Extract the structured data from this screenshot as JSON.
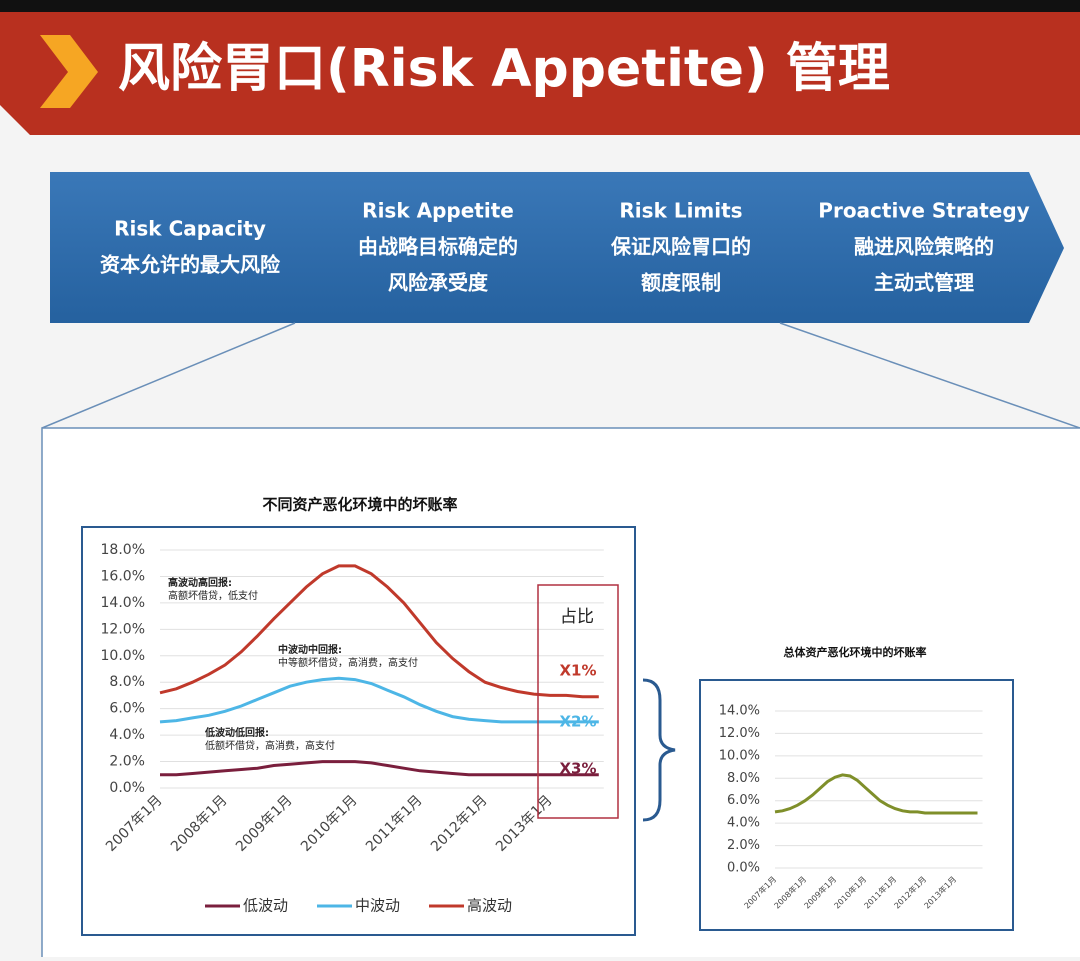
{
  "header": {
    "title": "风险胃口(Risk Appetite) 管理"
  },
  "process": {
    "steps": [
      {
        "title": "Risk Capacity",
        "lines": [
          "资本允许的最大风险"
        ]
      },
      {
        "title": "Risk Appetite",
        "lines": [
          "由战略目标确定的",
          "风险承受度"
        ]
      },
      {
        "title": "Risk Limits",
        "lines": [
          "保证风险胃口的",
          "额度限制"
        ]
      },
      {
        "title": "Proactive Strategy",
        "lines": [
          "融进风险策略的",
          "主动式管理"
        ]
      }
    ]
  },
  "chart_data": [
    {
      "type": "line",
      "title": "不同资产恶化环境中的坏账率",
      "categories": [
        "2007年1月",
        null,
        null,
        null,
        "2008年1月",
        null,
        null,
        null,
        "2009年1月",
        null,
        null,
        null,
        "2010年1月",
        null,
        null,
        null,
        "2011年1月",
        null,
        null,
        null,
        "2012年1月",
        null,
        null,
        null,
        "2013年1月",
        null,
        null,
        null
      ],
      "series": [
        {
          "name": "低波动",
          "color": "#7a1f3d",
          "values": [
            1.0,
            1.0,
            1.1,
            1.2,
            1.3,
            1.4,
            1.5,
            1.7,
            1.8,
            1.9,
            2.0,
            2.0,
            2.0,
            1.9,
            1.7,
            1.5,
            1.3,
            1.2,
            1.1,
            1.0,
            1.0,
            1.0,
            1.0,
            1.0,
            1.0,
            1.0,
            1.0,
            1.0
          ]
        },
        {
          "name": "中波动",
          "color": "#4db6e6",
          "values": [
            5.0,
            5.1,
            5.3,
            5.5,
            5.8,
            6.2,
            6.7,
            7.2,
            7.7,
            8.0,
            8.2,
            8.3,
            8.2,
            7.9,
            7.4,
            6.9,
            6.3,
            5.8,
            5.4,
            5.2,
            5.1,
            5.0,
            5.0,
            5.0,
            5.0,
            5.0,
            5.0,
            5.0
          ]
        },
        {
          "name": "高波动",
          "color": "#c0392b",
          "values": [
            7.2,
            7.5,
            8.0,
            8.6,
            9.3,
            10.3,
            11.5,
            12.8,
            14.0,
            15.2,
            16.2,
            16.8,
            16.8,
            16.2,
            15.2,
            14.0,
            12.5,
            11.0,
            9.8,
            8.8,
            8.0,
            7.6,
            7.3,
            7.1,
            7.0,
            7.0,
            6.9,
            6.9
          ]
        }
      ],
      "ylim": [
        0,
        18
      ],
      "yticks": [
        {
          "value": 0,
          "label": "0.0%"
        },
        {
          "value": 2,
          "label": "2.0%"
        },
        {
          "value": 4,
          "label": "4.0%"
        },
        {
          "value": 6,
          "label": "6.0%"
        },
        {
          "value": 8,
          "label": "8.0%"
        },
        {
          "value": 10,
          "label": "10.0%"
        },
        {
          "value": 12,
          "label": "12.0%"
        },
        {
          "value": 14,
          "label": "14.0%"
        },
        {
          "value": 16,
          "label": "16.0%"
        },
        {
          "value": 18,
          "label": "18.0%"
        }
      ],
      "legend": "bottom",
      "annotations": [
        {
          "lines": [
            "高波动高回报:",
            "高额坏借贷，低支付"
          ]
        },
        {
          "lines": [
            "中波动中回报:",
            "中等额坏借贷，高消费，高支付"
          ]
        },
        {
          "lines": [
            "低波动低回报:",
            "低额坏借贷，高消费，高支付"
          ]
        }
      ],
      "side_box": {
        "title": "占比",
        "items": [
          "X1%",
          "X2%",
          "X3%"
        ]
      }
    },
    {
      "type": "line",
      "title": "总体资产恶化环境中的坏账率",
      "categories": [
        "2007年1月",
        null,
        null,
        null,
        "2008年1月",
        null,
        null,
        null,
        "2009年1月",
        null,
        null,
        null,
        "2010年1月",
        null,
        null,
        null,
        "2011年1月",
        null,
        null,
        null,
        "2012年1月",
        null,
        null,
        null,
        "2013年1月",
        null,
        null,
        null
      ],
      "values": [
        5.0,
        5.1,
        5.3,
        5.6,
        6.0,
        6.5,
        7.1,
        7.7,
        8.1,
        8.3,
        8.2,
        7.8,
        7.2,
        6.6,
        6.0,
        5.6,
        5.3,
        5.1,
        5.0,
        5.0,
        4.9,
        4.9,
        4.9,
        4.9,
        4.9,
        4.9,
        4.9,
        4.9
      ],
      "color": "#7f8f2a",
      "ylim": [
        0,
        14
      ],
      "yticks": [
        {
          "value": 0,
          "label": "0.0%"
        },
        {
          "value": 2,
          "label": "2.0%"
        },
        {
          "value": 4,
          "label": "4.0%"
        },
        {
          "value": 6,
          "label": "6.0%"
        },
        {
          "value": 8,
          "label": "8.0%"
        },
        {
          "value": 10,
          "label": "10.0%"
        },
        {
          "value": 12,
          "label": "12.0%"
        },
        {
          "value": 14,
          "label": "14.0%"
        }
      ]
    }
  ]
}
